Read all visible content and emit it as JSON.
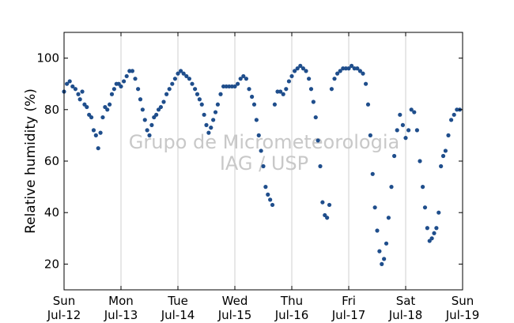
{
  "chart_data": {
    "type": "scatter",
    "title": "",
    "xlabel": "",
    "ylabel": "Relative humidity (%)",
    "watermark": [
      "Grupo de Micrometeorologia",
      "IAG / USP"
    ],
    "xlim": [
      0,
      7
    ],
    "ylim": [
      10,
      110
    ],
    "grid": "vertical",
    "x_unit": "days since Sun Jul-12",
    "x_ticks": [
      {
        "day": "Sun",
        "date": "Jul-12"
      },
      {
        "day": "Mon",
        "date": "Jul-13"
      },
      {
        "day": "Tue",
        "date": "Jul-14"
      },
      {
        "day": "Wed",
        "date": "Jul-15"
      },
      {
        "day": "Thu",
        "date": "Jul-16"
      },
      {
        "day": "Fri",
        "date": "Jul-17"
      },
      {
        "day": "Sat",
        "date": "Jul-18"
      },
      {
        "day": "Sun",
        "date": "Jul-19"
      }
    ],
    "y_ticks": [
      "20",
      "40",
      "60",
      "80",
      "100"
    ],
    "marker_color": "#1f4e8c",
    "series": [
      {
        "name": "",
        "points": [
          [
            0.0,
            87
          ],
          [
            0.05,
            90
          ],
          [
            0.1,
            91
          ],
          [
            0.15,
            89
          ],
          [
            0.2,
            88
          ],
          [
            0.25,
            86
          ],
          [
            0.28,
            84
          ],
          [
            0.32,
            87
          ],
          [
            0.36,
            82
          ],
          [
            0.4,
            81
          ],
          [
            0.44,
            78
          ],
          [
            0.48,
            77
          ],
          [
            0.52,
            72
          ],
          [
            0.56,
            70
          ],
          [
            0.6,
            65
          ],
          [
            0.64,
            71
          ],
          [
            0.68,
            77
          ],
          [
            0.72,
            81
          ],
          [
            0.76,
            80
          ],
          [
            0.8,
            82
          ],
          [
            0.84,
            86
          ],
          [
            0.88,
            88
          ],
          [
            0.92,
            90
          ],
          [
            0.96,
            90
          ],
          [
            1.0,
            89
          ],
          [
            1.05,
            91
          ],
          [
            1.1,
            93
          ],
          [
            1.15,
            95
          ],
          [
            1.2,
            95
          ],
          [
            1.25,
            92
          ],
          [
            1.3,
            88
          ],
          [
            1.34,
            84
          ],
          [
            1.38,
            80
          ],
          [
            1.42,
            76
          ],
          [
            1.46,
            72
          ],
          [
            1.5,
            70
          ],
          [
            1.54,
            74
          ],
          [
            1.58,
            77
          ],
          [
            1.62,
            78
          ],
          [
            1.66,
            80
          ],
          [
            1.7,
            81
          ],
          [
            1.75,
            83
          ],
          [
            1.8,
            86
          ],
          [
            1.85,
            88
          ],
          [
            1.9,
            90
          ],
          [
            1.95,
            92
          ],
          [
            2.0,
            94
          ],
          [
            2.05,
            95
          ],
          [
            2.1,
            94
          ],
          [
            2.15,
            93
          ],
          [
            2.2,
            92
          ],
          [
            2.25,
            90
          ],
          [
            2.3,
            88
          ],
          [
            2.34,
            86
          ],
          [
            2.38,
            84
          ],
          [
            2.42,
            82
          ],
          [
            2.46,
            78
          ],
          [
            2.5,
            74
          ],
          [
            2.54,
            71
          ],
          [
            2.58,
            73
          ],
          [
            2.62,
            76
          ],
          [
            2.66,
            79
          ],
          [
            2.7,
            82
          ],
          [
            2.75,
            86
          ],
          [
            2.8,
            89
          ],
          [
            2.85,
            89
          ],
          [
            2.9,
            89
          ],
          [
            2.95,
            89
          ],
          [
            3.0,
            89
          ],
          [
            3.05,
            90
          ],
          [
            3.1,
            92
          ],
          [
            3.15,
            93
          ],
          [
            3.2,
            92
          ],
          [
            3.25,
            88
          ],
          [
            3.3,
            85
          ],
          [
            3.34,
            82
          ],
          [
            3.38,
            76
          ],
          [
            3.42,
            70
          ],
          [
            3.46,
            64
          ],
          [
            3.5,
            58
          ],
          [
            3.54,
            50
          ],
          [
            3.58,
            47
          ],
          [
            3.62,
            45
          ],
          [
            3.66,
            43
          ],
          [
            3.7,
            82
          ],
          [
            3.75,
            87
          ],
          [
            3.8,
            87
          ],
          [
            3.85,
            86
          ],
          [
            3.9,
            88
          ],
          [
            3.95,
            91
          ],
          [
            4.0,
            93
          ],
          [
            4.05,
            95
          ],
          [
            4.1,
            96
          ],
          [
            4.15,
            97
          ],
          [
            4.2,
            96
          ],
          [
            4.25,
            95
          ],
          [
            4.3,
            92
          ],
          [
            4.34,
            88
          ],
          [
            4.38,
            83
          ],
          [
            4.42,
            77
          ],
          [
            4.46,
            68
          ],
          [
            4.5,
            58
          ],
          [
            4.54,
            44
          ],
          [
            4.58,
            39
          ],
          [
            4.62,
            38
          ],
          [
            4.66,
            43
          ],
          [
            4.7,
            88
          ],
          [
            4.75,
            92
          ],
          [
            4.8,
            94
          ],
          [
            4.85,
            95
          ],
          [
            4.9,
            96
          ],
          [
            4.95,
            96
          ],
          [
            5.0,
            96
          ],
          [
            5.05,
            97
          ],
          [
            5.1,
            96
          ],
          [
            5.15,
            96
          ],
          [
            5.2,
            95
          ],
          [
            5.25,
            94
          ],
          [
            5.3,
            90
          ],
          [
            5.34,
            82
          ],
          [
            5.38,
            70
          ],
          [
            5.42,
            55
          ],
          [
            5.46,
            42
          ],
          [
            5.5,
            33
          ],
          [
            5.54,
            25
          ],
          [
            5.58,
            20
          ],
          [
            5.62,
            22
          ],
          [
            5.66,
            28
          ],
          [
            5.7,
            38
          ],
          [
            5.75,
            50
          ],
          [
            5.8,
            62
          ],
          [
            5.85,
            72
          ],
          [
            5.9,
            78
          ],
          [
            5.95,
            74
          ],
          [
            6.0,
            69
          ],
          [
            6.05,
            72
          ],
          [
            6.1,
            80
          ],
          [
            6.15,
            79
          ],
          [
            6.2,
            72
          ],
          [
            6.25,
            60
          ],
          [
            6.3,
            50
          ],
          [
            6.34,
            42
          ],
          [
            6.38,
            34
          ],
          [
            6.42,
            29
          ],
          [
            6.46,
            30
          ],
          [
            6.5,
            32
          ],
          [
            6.54,
            34
          ],
          [
            6.58,
            40
          ],
          [
            6.62,
            58
          ],
          [
            6.66,
            62
          ],
          [
            6.7,
            64
          ],
          [
            6.75,
            70
          ],
          [
            6.8,
            76
          ],
          [
            6.85,
            78
          ],
          [
            6.9,
            80
          ],
          [
            6.95,
            80
          ]
        ]
      }
    ]
  }
}
